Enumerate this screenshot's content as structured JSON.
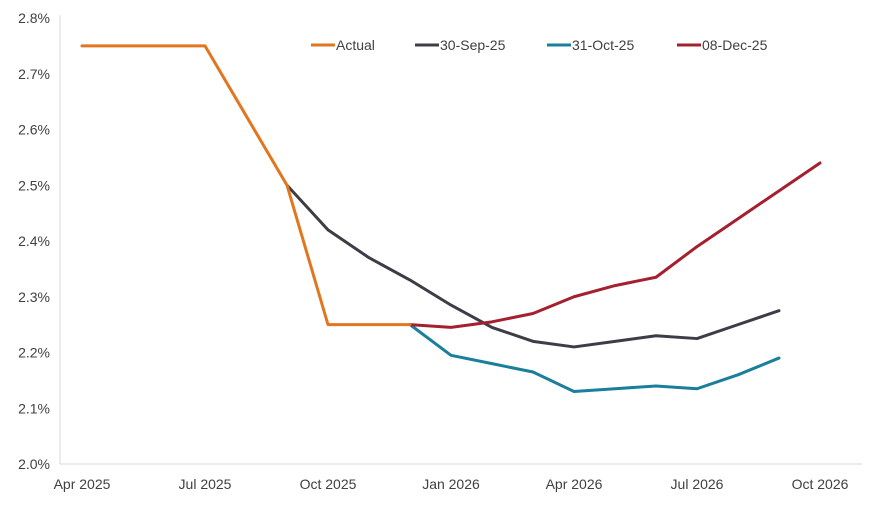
{
  "chart": {
    "title": "",
    "y_axis": {
      "tick_labels": [
        "2.0%",
        "2.1%",
        "2.2%",
        "2.3%",
        "2.4%",
        "2.5%",
        "2.6%",
        "2.7%",
        "2.8%"
      ],
      "min": 2.0,
      "max": 2.8,
      "step": 0.1
    },
    "x_axis": {
      "tick_labels": [
        "Apr 2025",
        "Jul 2025",
        "Oct 2025",
        "Jan 2026",
        "Apr 2026",
        "Jul 2026",
        "Oct 2026"
      ],
      "tick_month_indices": [
        0,
        3,
        6,
        9,
        12,
        15,
        18
      ]
    },
    "legend": {
      "items": [
        "Actual",
        "30-Sep-25",
        "31-Oct-25",
        "08-Dec-25"
      ],
      "position": "top"
    }
  },
  "chart_data": {
    "type": "line",
    "x": [
      "Apr 2025",
      "May 2025",
      "Jun 2025",
      "Jul 2025",
      "Aug 2025",
      "Sep 2025",
      "Oct 2025",
      "Nov 2025",
      "Dec 2025",
      "Jan 2026",
      "Feb 2026",
      "Mar 2026",
      "Apr 2026",
      "May 2026",
      "Jun 2026",
      "Jul 2026",
      "Aug 2026",
      "Sep 2026",
      "Oct 2026"
    ],
    "unit": "percent",
    "ylim": [
      2.0,
      2.8
    ],
    "grid": false,
    "legend_position": "top",
    "series": [
      {
        "name": "Actual",
        "color": "#E2761E",
        "start_index": 0,
        "values": [
          2.75,
          2.75,
          2.75,
          2.75,
          2.625,
          2.5,
          2.25,
          2.25,
          2.25
        ]
      },
      {
        "name": "30-Sep-25",
        "color": "#3D3D47",
        "start_index": 5,
        "values": [
          2.5,
          2.42,
          2.37,
          2.33,
          2.285,
          2.245,
          2.22,
          2.21,
          2.22,
          2.23,
          2.225,
          2.25,
          2.275
        ]
      },
      {
        "name": "31-Oct-25",
        "color": "#1A7F9B",
        "start_index": 8,
        "values": [
          2.25,
          2.195,
          2.18,
          2.165,
          2.13,
          2.135,
          2.14,
          2.135,
          2.16,
          2.19
        ]
      },
      {
        "name": "08-Dec-25",
        "color": "#A5202F",
        "start_index": 8,
        "values": [
          2.25,
          2.245,
          2.255,
          2.27,
          2.3,
          2.32,
          2.335,
          2.39,
          2.44,
          2.49,
          2.54
        ]
      }
    ]
  }
}
